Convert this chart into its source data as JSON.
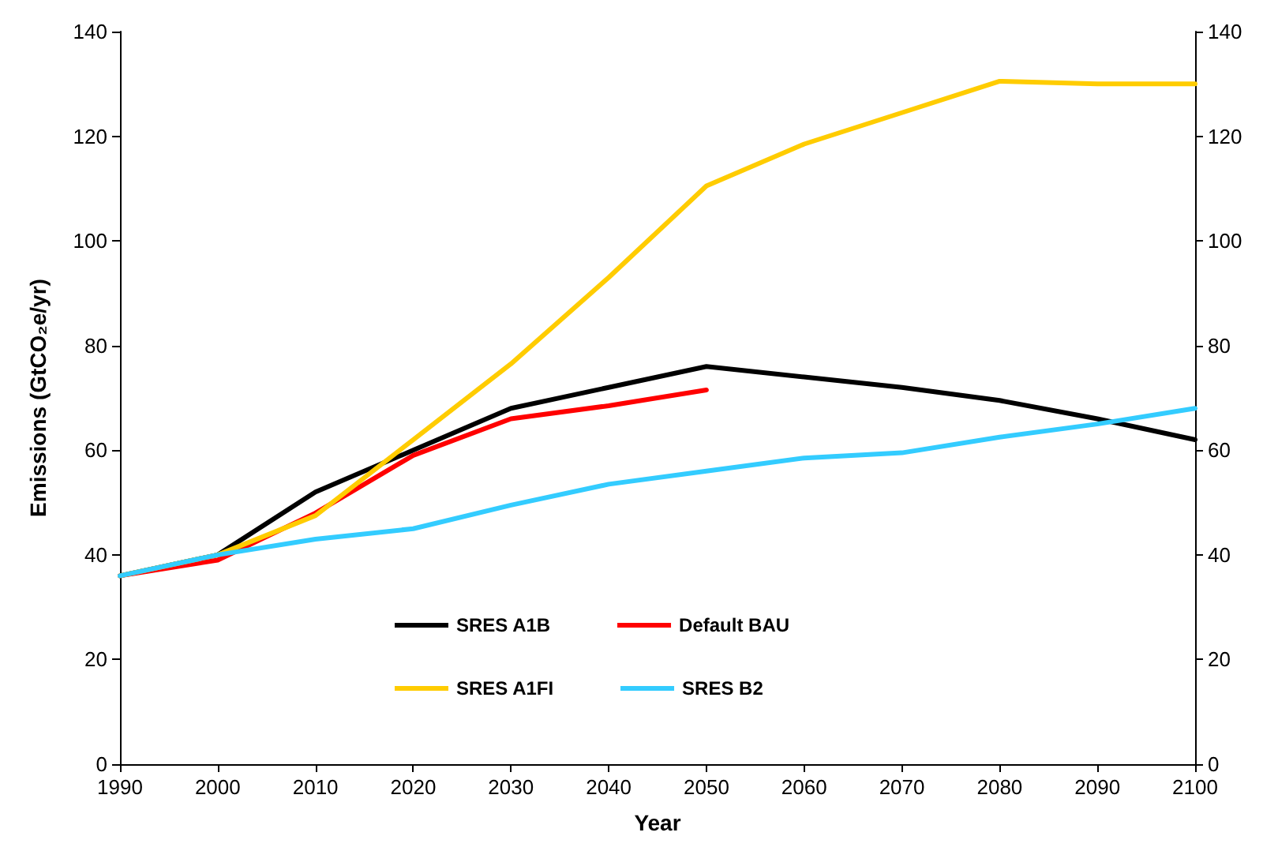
{
  "chart_data": {
    "type": "line",
    "xlabel": "Year",
    "ylabel": "Emissions (GtCO₂e/yr)",
    "x": [
      1990,
      2000,
      2010,
      2020,
      2030,
      2040,
      2050,
      2060,
      2070,
      2080,
      2090,
      2100
    ],
    "series": [
      {
        "name": "SRES A1B",
        "color": "#000000",
        "values": [
          36,
          40,
          52,
          60,
          68,
          72,
          76,
          74,
          72,
          69.5,
          66,
          62
        ]
      },
      {
        "name": "Default BAU",
        "color": "#ff0000",
        "values": [
          36,
          39,
          48,
          59,
          66,
          68.5,
          71.5,
          null,
          null,
          null,
          null,
          null
        ]
      },
      {
        "name": "SRES A1FI",
        "color": "#ffcc00",
        "values": [
          36,
          40,
          47.5,
          62,
          76.5,
          93,
          110.5,
          118.5,
          124.5,
          130.5,
          130,
          130
        ]
      },
      {
        "name": "SRES B2",
        "color": "#33ccff",
        "values": [
          36,
          40,
          43,
          45,
          49.5,
          53.5,
          56,
          58.5,
          59.5,
          62.5,
          65,
          68
        ]
      }
    ],
    "xlim": [
      1990,
      2100
    ],
    "xticks": [
      1990,
      2000,
      2010,
      2020,
      2030,
      2040,
      2050,
      2060,
      2070,
      2080,
      2090,
      2100
    ],
    "ylim": [
      0,
      140
    ],
    "yticks": [
      0,
      20,
      40,
      60,
      80,
      100,
      120,
      140
    ],
    "y2lim": [
      0,
      140
    ],
    "y2ticks": [
      0,
      20,
      40,
      60,
      80,
      100,
      120,
      140
    ],
    "legend": "bottom left",
    "grid": false,
    "marker": "none",
    "line_style": "solid"
  }
}
